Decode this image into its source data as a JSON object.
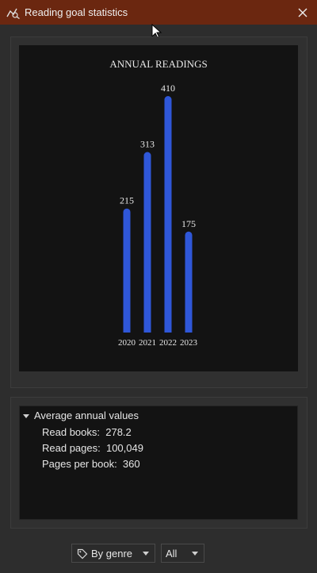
{
  "window": {
    "title": "Reading goal statistics"
  },
  "icons": {
    "app": "chart-line-icon",
    "close": "close-icon",
    "tag": "tag-icon",
    "dropdown": "chevron-down-icon"
  },
  "colors": {
    "titlebar": "#6b2710",
    "bar": "#2f57d8",
    "background": "#2d2d2d",
    "panel": "#131313"
  },
  "chart_data": {
    "type": "bar",
    "title": "ANNUAL READINGS",
    "categories": [
      "2020",
      "2021",
      "2022",
      "2023"
    ],
    "values": [
      215,
      313,
      410,
      175
    ],
    "ylim": [
      0,
      410
    ],
    "grid": false,
    "xlabel": "",
    "ylabel": ""
  },
  "stats": {
    "header": "Average annual values",
    "rows": [
      {
        "label": "Read books:",
        "value": "278.2"
      },
      {
        "label": "Read pages:",
        "value": "100,049"
      },
      {
        "label": "Pages per book:",
        "value": "360"
      }
    ]
  },
  "filters": {
    "group_by": "By genre",
    "scope": "All"
  }
}
